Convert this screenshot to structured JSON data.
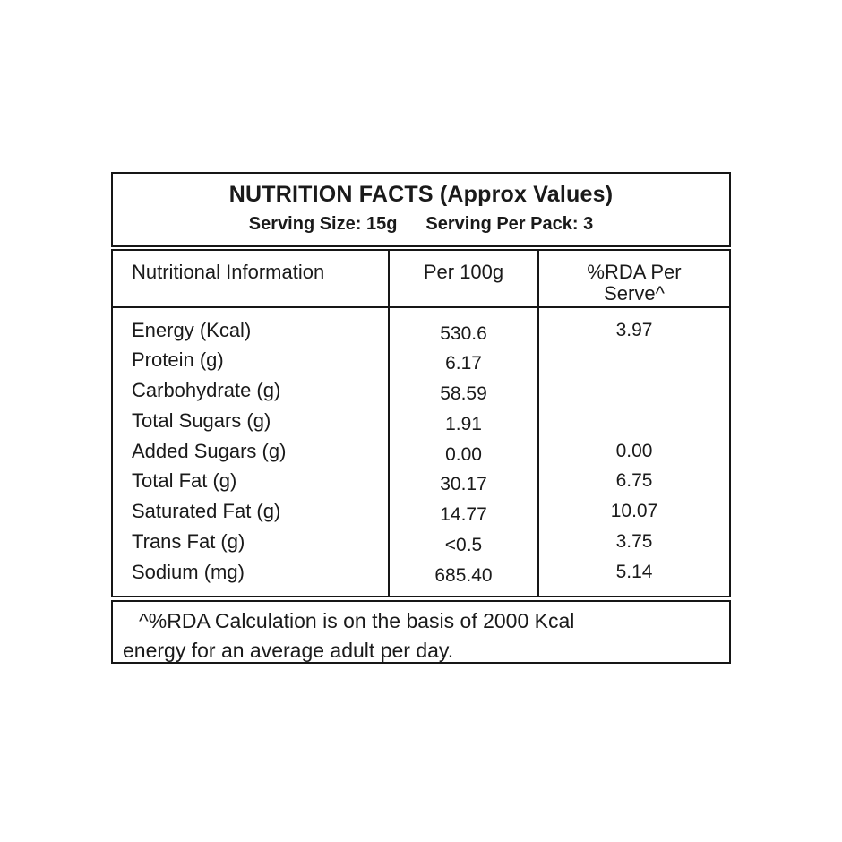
{
  "label": {
    "title": "NUTRITION FACTS (Approx Values)",
    "serving_size": "Serving Size: 15g",
    "serving_per_pack": "Serving Per Pack: 3",
    "columns": {
      "info": "Nutritional Information",
      "per_100g": "Per 100g",
      "rda": "%RDA Per Serve^"
    },
    "rows": [
      {
        "name": "Energy (Kcal)",
        "per100g": "530.6",
        "rda": "3.97"
      },
      {
        "name": "Protein (g)",
        "per100g": "6.17",
        "rda": ""
      },
      {
        "name": "Carbohydrate (g)",
        "per100g": "58.59",
        "rda": ""
      },
      {
        "name": "Total Sugars (g)",
        "per100g": "1.91",
        "rda": ""
      },
      {
        "name": "Added Sugars (g)",
        "per100g": "0.00",
        "rda": "0.00"
      },
      {
        "name": "Total Fat (g)",
        "per100g": "30.17",
        "rda": "6.75"
      },
      {
        "name": "Saturated Fat (g)",
        "per100g": "14.77",
        "rda": "10.07"
      },
      {
        "name": "Trans Fat (g)",
        "per100g": "<0.5",
        "rda": "3.75"
      },
      {
        "name": "Sodium (mg)",
        "per100g": "685.40",
        "rda": "5.14"
      }
    ],
    "footnote_line1": "^%RDA Calculation is on the basis of 2000 Kcal",
    "footnote_line2": "energy for an average adult per day.",
    "colors": {
      "background": "#ffffff",
      "text": "#1a1a1a",
      "border": "#161616"
    }
  }
}
